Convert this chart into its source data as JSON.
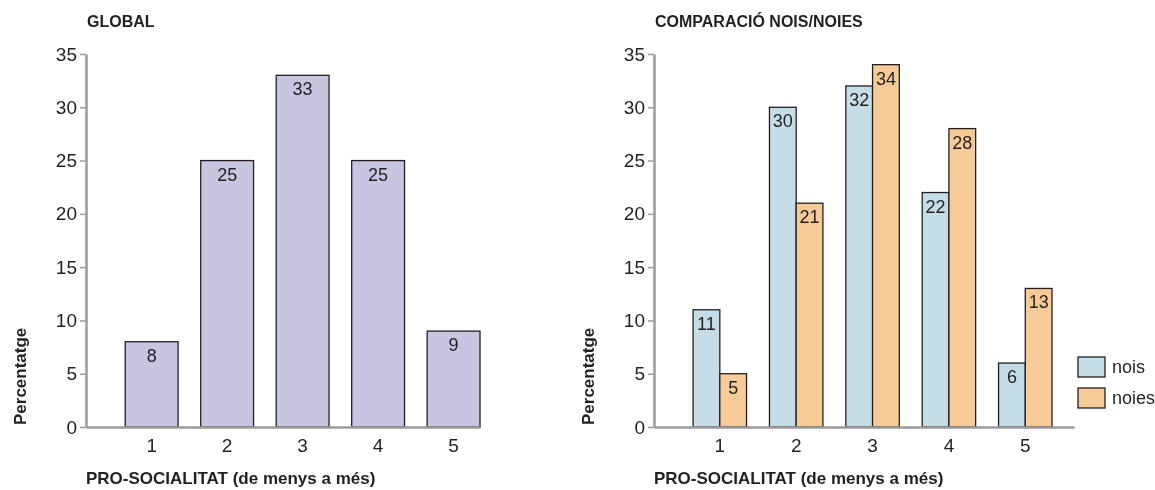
{
  "chart_data": [
    {
      "type": "bar",
      "title": "GLOBAL",
      "xlabel": "PRO-SOCIALITAT (de menys a més)",
      "ylabel": "Percentatge",
      "categories": [
        "1",
        "2",
        "3",
        "4",
        "5"
      ],
      "values": [
        8,
        25,
        33,
        25,
        9
      ],
      "color": "#c8c5e1",
      "ylim": [
        0,
        35
      ],
      "yticks": [
        0,
        5,
        10,
        15,
        20,
        25,
        30,
        35
      ],
      "data_labels": true
    },
    {
      "type": "bar",
      "title": "COMPARACIÓ NOIS/NOIES",
      "xlabel": "PRO-SOCIALITAT (de menys a més)",
      "ylabel": "Percentatge",
      "categories": [
        "1",
        "2",
        "3",
        "4",
        "5"
      ],
      "series": [
        {
          "name": "nois",
          "color": "#c4dde6",
          "values": [
            11,
            30,
            32,
            22,
            6
          ]
        },
        {
          "name": "noies",
          "color": "#f7cb98",
          "values": [
            5,
            21,
            34,
            28,
            13
          ]
        }
      ],
      "ylim": [
        0,
        35
      ],
      "yticks": [
        0,
        5,
        10,
        15,
        20,
        25,
        30,
        35
      ],
      "data_labels": true,
      "legend": "right"
    }
  ]
}
